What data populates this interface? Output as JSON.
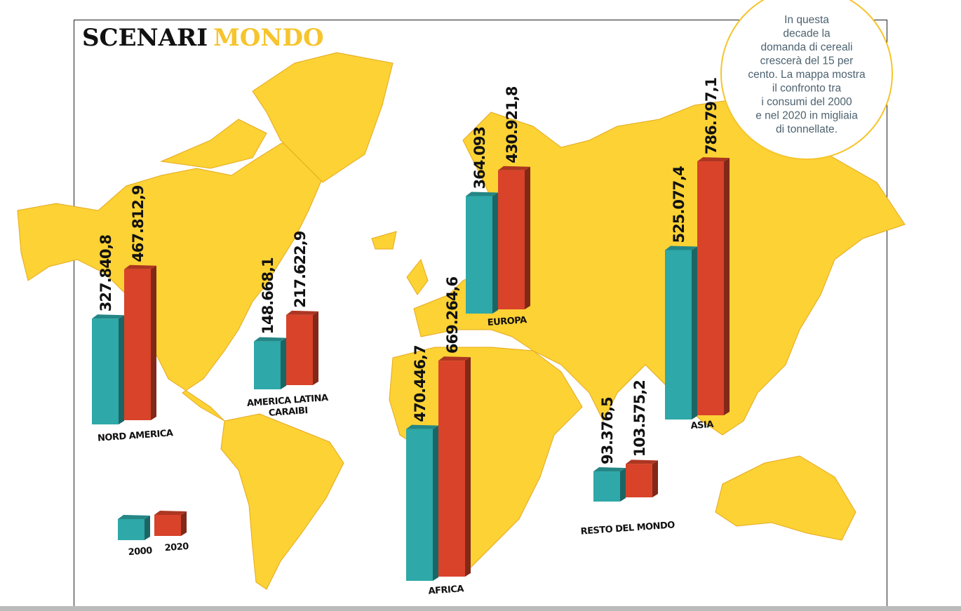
{
  "chart_data": {
    "type": "bar3d",
    "title": "SCENARI",
    "title_highlight": "MONDO",
    "annotation": [
      "In questa",
      "decade la",
      "domanda di cereali",
      "crescerà del 15 per",
      "cento. La mappa mostra",
      "il confronto tra",
      "i consumi del 2000",
      "e nel 2020 in migliaia",
      "di tonnellate."
    ],
    "categories": [
      "NORD AMERICA",
      "AMERICA LATINA CARAIBI",
      "EUROPA",
      "AFRICA",
      "ASIA",
      "RESTO DEL MONDO"
    ],
    "series": [
      {
        "name": "2000",
        "color": "#2ea8a8",
        "values": [
          327840.8,
          148668.1,
          364093,
          470446.7,
          525077.4,
          93376.5
        ],
        "value_labels": [
          "327.840,8",
          "148.668,1",
          "364.093",
          "470.446,7",
          "525.077,4",
          "93.376,5"
        ]
      },
      {
        "name": "2020",
        "color": "#d8432a",
        "values": [
          467812.9,
          217622.9,
          430921.8,
          669264.6,
          786797.1,
          103575.2
        ],
        "value_labels": [
          "467.812,9",
          "217.622,9",
          "430.921,8",
          "669.264,6",
          "786.797,1",
          "103.575,2"
        ]
      }
    ]
  }
}
